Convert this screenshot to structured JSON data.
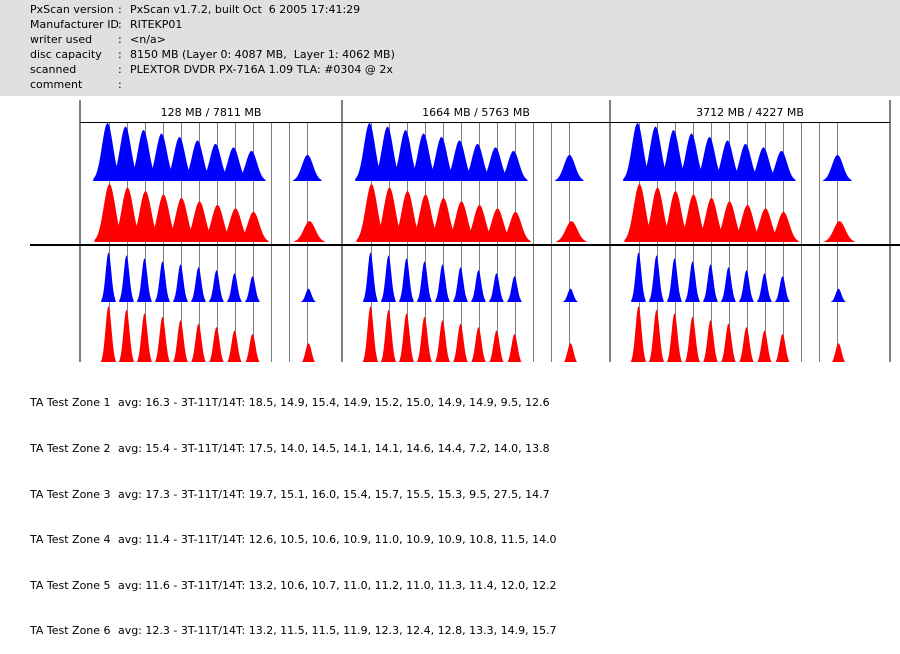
{
  "info": [
    {
      "label": "PxScan version",
      "value": "PxScan v1.7.2, built Oct  6 2005 17:41:29"
    },
    {
      "label": "Manufacturer ID",
      "value": "RITEKP01"
    },
    {
      "label": "writer used",
      "value": "<n/a>"
    },
    {
      "label": "disc capacity",
      "value": "8150 MB (Layer 0: 4087 MB,  Layer 1: 4062 MB)"
    },
    {
      "label": "scanned",
      "value": "PLEXTOR DVDR PX-716A 1.09 TLA: #0304 @ 2x"
    },
    {
      "label": "comment",
      "value": ""
    }
  ],
  "panels": [
    {
      "title": "128 MB / 7811 MB"
    },
    {
      "title": "1664 MB / 5763 MB"
    },
    {
      "title": "3712 MB / 4227 MB"
    }
  ],
  "colors": {
    "upper": "#0000ff",
    "lower": "#ff0000",
    "grid": "#808080"
  },
  "zones": [
    {
      "name": "TA Test Zone 1",
      "stats": "avg: 16.3 - 3T-11T/14T: 18.5, 14.9, 15.4, 14.9, 15.2, 15.0, 14.9, 14.9, 9.5, 12.6"
    },
    {
      "name": "TA Test Zone 2",
      "stats": "avg: 15.4 - 3T-11T/14T: 17.5, 14.0, 14.5, 14.1, 14.1, 14.6, 14.4, 7.2, 14.0, 13.8"
    },
    {
      "name": "TA Test Zone 3",
      "stats": "avg: 17.3 - 3T-11T/14T: 19.7, 15.1, 16.0, 15.4, 15.7, 15.5, 15.3, 9.5, 27.5, 14.7"
    },
    {
      "name": "TA Test Zone 4",
      "stats": "avg: 11.4 - 3T-11T/14T: 12.6, 10.5, 10.6, 10.9, 11.0, 10.9, 10.9, 10.8, 11.5, 14.0"
    },
    {
      "name": "TA Test Zone 5",
      "stats": "avg: 11.6 - 3T-11T/14T: 13.2, 10.6, 10.7, 11.0, 11.2, 11.0, 11.3, 11.4, 12.0, 12.2"
    },
    {
      "name": "TA Test Zone 6",
      "stats": "avg: 12.3 - 3T-11T/14T: 13.2, 11.5, 11.5, 11.9, 12.3, 12.4, 12.8, 13.3, 14.9, 15.7"
    }
  ]
}
